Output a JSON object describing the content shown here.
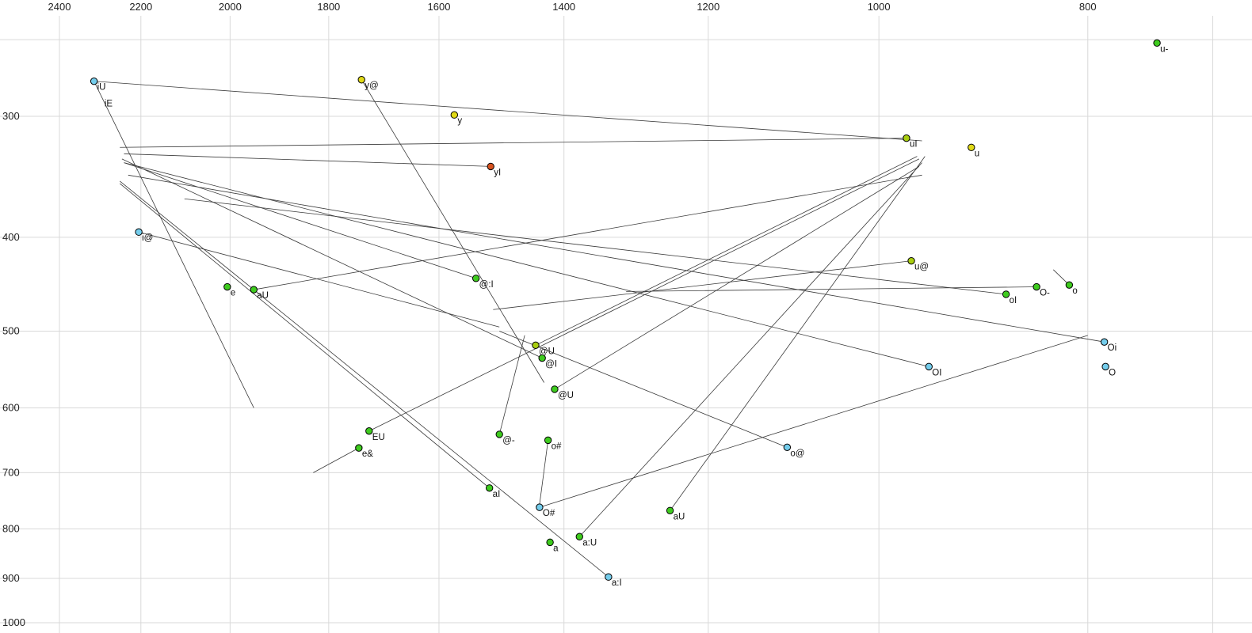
{
  "chart_data": {
    "type": "scatter",
    "title": "",
    "x_axis": {
      "position": "top",
      "scale": "log",
      "reversed": true,
      "ticks": [
        2400,
        2200,
        2000,
        1800,
        1600,
        1400,
        1200,
        1000,
        800
      ],
      "unlabeled_gridlines": [
        700
      ]
    },
    "y_axis": {
      "position": "left",
      "scale": "log",
      "increases_downward": true,
      "ticks": [
        300,
        400,
        500,
        600,
        700,
        800,
        900,
        1000
      ],
      "unlabeled_gridlines": [
        250
      ]
    },
    "grid": true,
    "colors": {
      "green": "#3ecb1e",
      "yellow_green": "#a9ce10",
      "yellow": "#e0d916",
      "cyan": "#74cdec",
      "red": "#d7531f",
      "line": "#3a3a3a",
      "grid": "#d9d9d9",
      "point_stroke": "#000000",
      "label": "#111111",
      "tick": "#222222",
      "background": "#ffffff"
    },
    "points": [
      {
        "label": "u-",
        "f2": 743,
        "f1": 252,
        "color": "green"
      },
      {
        "label": "iU",
        "f2": 2313,
        "f1": 276,
        "color": "cyan"
      },
      {
        "label": "y@",
        "f2": 1738,
        "f1": 275,
        "color": "yellow"
      },
      {
        "label": "y",
        "f2": 1574,
        "f1": 299,
        "color": "yellow"
      },
      {
        "label": "uI",
        "f2": 971,
        "f1": 316,
        "color": "yellow_green"
      },
      {
        "label": "u",
        "f2": 906,
        "f1": 323,
        "color": "yellow"
      },
      {
        "label": "yI",
        "f2": 1514,
        "f1": 338,
        "color": "red"
      },
      {
        "label": "i@",
        "f2": 2205,
        "f1": 395,
        "color": "cyan"
      },
      {
        "label": "u@",
        "f2": 966,
        "f1": 423,
        "color": "yellow_green"
      },
      {
        "label": "O-",
        "f2": 845,
        "f1": 450,
        "color": "green"
      },
      {
        "label": "o",
        "f2": 816,
        "f1": 448,
        "color": "green"
      },
      {
        "label": "oI",
        "f2": 873,
        "f1": 458,
        "color": "green"
      },
      {
        "label": "e",
        "f2": 2006,
        "f1": 450,
        "color": "green"
      },
      {
        "label": "aU",
        "f2": 1950,
        "f1": 453,
        "color": "green"
      },
      {
        "label": "@:I",
        "f2": 1538,
        "f1": 441,
        "color": "green"
      },
      {
        "label": "@U",
        "f2": 1443,
        "f1": 517,
        "color": "yellow_green"
      },
      {
        "label": "@I",
        "f2": 1433,
        "f1": 533,
        "color": "green"
      },
      {
        "label": "@U",
        "f2": 1414,
        "f1": 574,
        "color": "green"
      },
      {
        "label": "OI",
        "f2": 948,
        "f1": 544,
        "color": "cyan"
      },
      {
        "label": "Oi",
        "f2": 786,
        "f1": 513,
        "color": "cyan"
      },
      {
        "label": "O",
        "f2": 785,
        "f1": 544,
        "color": "cyan"
      },
      {
        "label": "EU",
        "f2": 1724,
        "f1": 634,
        "color": "green"
      },
      {
        "label": "e&",
        "f2": 1743,
        "f1": 660,
        "color": "green"
      },
      {
        "label": "@-",
        "f2": 1500,
        "f1": 639,
        "color": "green"
      },
      {
        "label": "o#",
        "f2": 1424,
        "f1": 648,
        "color": "green"
      },
      {
        "label": "o@",
        "f2": 1103,
        "f1": 659,
        "color": "cyan"
      },
      {
        "label": "aI",
        "f2": 1516,
        "f1": 726,
        "color": "green"
      },
      {
        "label": "O#",
        "f2": 1437,
        "f1": 760,
        "color": "cyan"
      },
      {
        "label": "aU",
        "f2": 1250,
        "f1": 766,
        "color": "green"
      },
      {
        "label": "a",
        "f2": 1421,
        "f1": 826,
        "color": "green"
      },
      {
        "label": "a:U",
        "f2": 1377,
        "f1": 815,
        "color": "green"
      },
      {
        "label": "a:I",
        "f2": 1335,
        "f1": 897,
        "color": "cyan"
      }
    ],
    "extra_labels": [
      {
        "text": "iE",
        "f2": 2295,
        "f1": 287
      }
    ],
    "trajectories": [
      {
        "name": "iU",
        "from": [
          2313,
          276
        ],
        "to": [
          955,
          318
        ]
      },
      {
        "name": "iE",
        "from": [
          2313,
          276
        ],
        "to": [
          1950,
          600
        ]
      },
      {
        "name": "y@",
        "from": [
          1738,
          275
        ],
        "to": [
          1430,
          565
        ]
      },
      {
        "name": "uI",
        "from": [
          971,
          316
        ],
        "to": [
          2250,
          323
        ]
      },
      {
        "name": "yI",
        "from": [
          1514,
          338
        ],
        "to": [
          2240,
          328
        ]
      },
      {
        "name": "i@",
        "from": [
          2205,
          395
        ],
        "to": [
          1500,
          495
        ]
      },
      {
        "name": "u@",
        "from": [
          966,
          423
        ],
        "to": [
          1510,
          475
        ]
      },
      {
        "name": "O-",
        "from": [
          845,
          450
        ],
        "to": [
          1310,
          455
        ]
      },
      {
        "name": "o",
        "from": [
          830,
          432
        ],
        "to": [
          816,
          448
        ]
      },
      {
        "name": "oI",
        "from": [
          873,
          458
        ],
        "to": [
          2100,
          365
        ]
      },
      {
        "name": "aU",
        "from": [
          1950,
          453
        ],
        "to": [
          955,
          345
        ]
      },
      {
        "name": "@:I",
        "from": [
          1538,
          441
        ],
        "to": [
          2240,
          335
        ]
      },
      {
        "name": "@U",
        "from": [
          1443,
          517
        ],
        "to": [
          960,
          330
        ]
      },
      {
        "name": "@I",
        "from": [
          1433,
          533
        ],
        "to": [
          2245,
          332
        ]
      },
      {
        "name": "@U",
        "from": [
          1414,
          574
        ],
        "to": [
          958,
          338
        ]
      },
      {
        "name": "OI",
        "from": [
          948,
          544
        ],
        "to": [
          2240,
          335
        ]
      },
      {
        "name": "Oi",
        "from": [
          786,
          513
        ],
        "to": [
          2230,
          345
        ]
      },
      {
        "name": "EU",
        "from": [
          1724,
          634
        ],
        "to": [
          958,
          332
        ]
      },
      {
        "name": "e&",
        "from": [
          1743,
          660
        ],
        "to": [
          1830,
          700
        ]
      },
      {
        "name": "@-",
        "from": [
          1500,
          639
        ],
        "to": [
          1460,
          505
        ]
      },
      {
        "name": "o#",
        "from": [
          1424,
          648
        ],
        "to": [
          1437,
          755
        ]
      },
      {
        "name": "O#",
        "from": [
          1437,
          760
        ],
        "to": [
          800,
          505
        ]
      },
      {
        "name": "o@",
        "from": [
          1103,
          659
        ],
        "to": [
          1500,
          500
        ]
      },
      {
        "name": "aI",
        "from": [
          1516,
          726
        ],
        "to": [
          2250,
          352
        ]
      },
      {
        "name": "a:I",
        "from": [
          1335,
          897
        ],
        "to": [
          2250,
          350
        ]
      },
      {
        "name": "a:U",
        "from": [
          1377,
          815
        ],
        "to": [
          955,
          335
        ]
      },
      {
        "name": "aU",
        "from": [
          1250,
          766
        ],
        "to": [
          952,
          330
        ]
      }
    ]
  }
}
